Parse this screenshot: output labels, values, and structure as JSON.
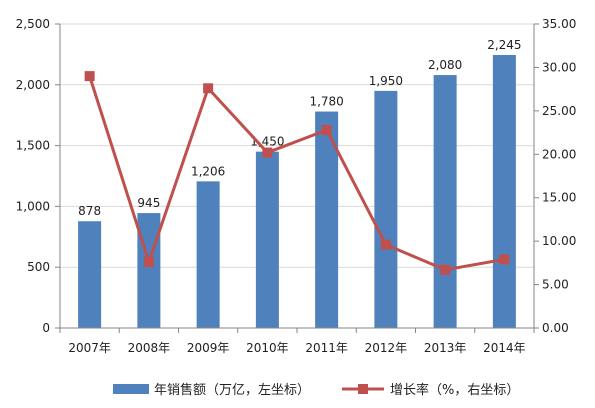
{
  "chart_data": {
    "type": "bar",
    "categories": [
      "2007年",
      "2008年",
      "2009年",
      "2010年",
      "2011年",
      "2012年",
      "2013年",
      "2014年"
    ],
    "series": [
      {
        "name": "年销售额（万亿，左坐标）",
        "type": "bar",
        "axis": "left",
        "color": "#4f81bd",
        "values": [
          878,
          945,
          1206,
          1450,
          1780,
          1950,
          2080,
          2245
        ],
        "data_labels": [
          "878",
          "945",
          "1,206",
          "1,450",
          "1,780",
          "1,950",
          "2,080",
          "2,245"
        ]
      },
      {
        "name": "增长率（%，右坐标）",
        "type": "line",
        "axis": "right",
        "color": "#c0504d",
        "marker": "square",
        "values": [
          29.0,
          7.6,
          27.6,
          20.2,
          22.8,
          9.6,
          6.7,
          7.9
        ]
      }
    ],
    "y_left": {
      "lim": [
        0,
        2500
      ],
      "ticks": [
        0,
        500,
        1000,
        1500,
        2000,
        2500
      ],
      "tick_labels": [
        "0",
        "500",
        "1,000",
        "1,500",
        "2,000",
        "2,500"
      ]
    },
    "y_right": {
      "lim": [
        0,
        35
      ],
      "ticks": [
        0,
        5,
        10,
        15,
        20,
        25,
        30,
        35
      ],
      "tick_labels": [
        "0.00",
        "5.00",
        "10.00",
        "15.00",
        "20.00",
        "25.00",
        "30.00",
        "35.00"
      ]
    },
    "grid": true,
    "legend": "bottom"
  }
}
